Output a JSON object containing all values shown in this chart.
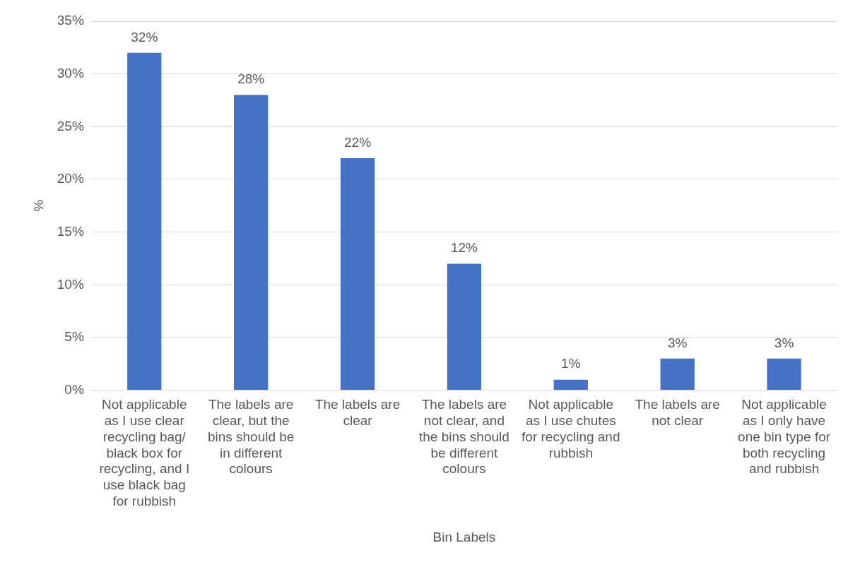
{
  "chart_data": {
    "type": "bar",
    "xlabel": "Bin Labels",
    "ylabel": "%",
    "categories": [
      "Not applicable as I use clear recycling bag/ black box for recycling, and I use black bag for rubbish",
      "The labels are clear, but the bins should be in different colours",
      "The labels are clear",
      "The labels are not clear, and the bins should be different colours",
      "Not applicable as I use chutes for recycling and rubbish",
      "The labels are not clear",
      "Not applicable as I only have one bin type for both recycling and rubbish"
    ],
    "values": [
      32,
      28,
      22,
      12,
      1,
      3,
      3
    ],
    "value_labels": [
      "32%",
      "28%",
      "22%",
      "12%",
      "1%",
      "3%",
      "3%"
    ],
    "color": "#4472c4",
    "ylim": [
      0,
      35
    ],
    "yticks": [
      {
        "value": 0,
        "label": "0%"
      },
      {
        "value": 5,
        "label": "5%"
      },
      {
        "value": 10,
        "label": "10%"
      },
      {
        "value": 15,
        "label": "15%"
      },
      {
        "value": 20,
        "label": "20%"
      },
      {
        "value": 25,
        "label": "25%"
      },
      {
        "value": 30,
        "label": "30%"
      },
      {
        "value": 35,
        "label": "35%"
      }
    ],
    "grid": "y",
    "legend": false
  }
}
